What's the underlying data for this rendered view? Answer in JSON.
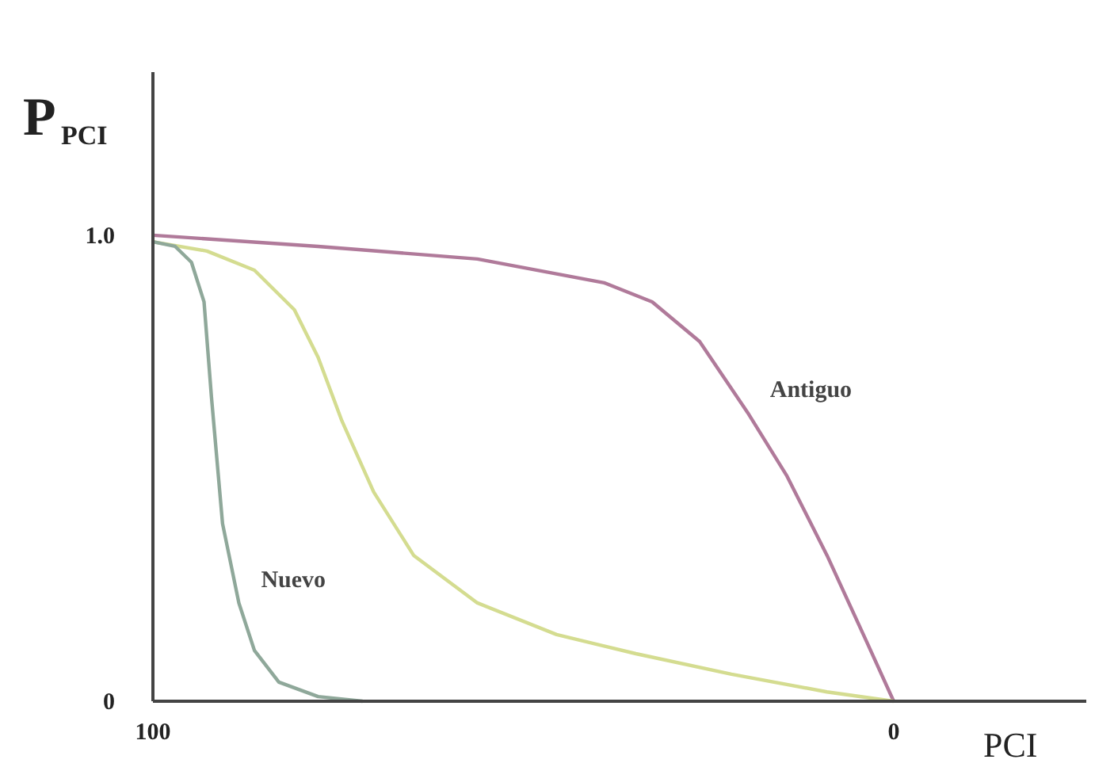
{
  "chart_data": {
    "type": "line",
    "xlabel": "PCI",
    "ylabel": "P$_{PCI}$",
    "xlim": [
      100,
      -26
    ],
    "ylim": [
      0,
      1.35
    ],
    "xticks": [
      100,
      0
    ],
    "yticks": [
      0,
      {
        "value": 1,
        "label": "1.0"
      }
    ],
    "grid": false,
    "legend": false,
    "marker": "none",
    "line_style": "solid",
    "series": [
      {
        "name": "Antiguo",
        "color": "#b07a9a",
        "x": [
          100,
          77.7,
          56.2,
          39.1,
          32.6,
          26.2,
          19.7,
          14.4,
          9.0,
          3.6,
          0
        ],
        "values": [
          1.0,
          0.976,
          0.949,
          0.898,
          0.857,
          0.772,
          0.619,
          0.483,
          0.313,
          0.126,
          0
        ]
      },
      {
        "color": "#d4dc90",
        "x": [
          100,
          92.7,
          86.3,
          80.9,
          77.7,
          74.5,
          70.2,
          64.8,
          56.2,
          45.5,
          34.8,
          21.9,
          9.0,
          0
        ],
        "values": [
          0.986,
          0.966,
          0.925,
          0.84,
          0.738,
          0.602,
          0.449,
          0.313,
          0.211,
          0.143,
          0.102,
          0.058,
          0.02,
          0
        ]
      },
      {
        "name": "Nuevo",
        "color": "#8fa89a",
        "x": [
          100,
          97.0,
          94.8,
          93.1,
          92.1,
          90.6,
          88.4,
          86.3,
          83.0,
          77.7,
          71.7
        ],
        "values": [
          0.986,
          0.976,
          0.942,
          0.857,
          0.653,
          0.381,
          0.211,
          0.109,
          0.041,
          0.01,
          0
        ]
      }
    ]
  }
}
